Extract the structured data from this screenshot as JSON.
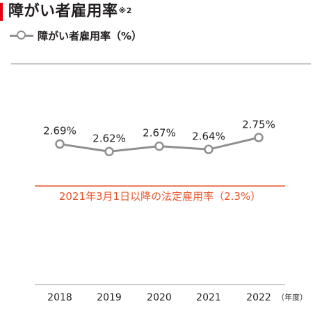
{
  "title": "障がい者雇用率",
  "title_note": "※2",
  "legend_label": "障がい者雇用率（%）",
  "unit_label": "（年度）",
  "chart_data": {
    "type": "line",
    "title": "障がい者雇用率",
    "x": [
      "2018",
      "2019",
      "2020",
      "2021",
      "2022"
    ],
    "series": [
      {
        "name": "障がい者雇用率（%）",
        "values": [
          2.69,
          2.62,
          2.67,
          2.64,
          2.75
        ],
        "labels": [
          "2.69%",
          "2.62%",
          "2.67%",
          "2.64%",
          "2.75%"
        ],
        "color": "#8f8f8f"
      }
    ],
    "reference_line": {
      "label": "2021年3月1日以降の法定雇用率（2.3%）",
      "value": 2.3,
      "color": "#e8542a"
    },
    "xlabel": "（年度）",
    "ylabel": "",
    "ylim": [
      2.3,
      2.9
    ],
    "grid": false,
    "legend": "top-left"
  }
}
